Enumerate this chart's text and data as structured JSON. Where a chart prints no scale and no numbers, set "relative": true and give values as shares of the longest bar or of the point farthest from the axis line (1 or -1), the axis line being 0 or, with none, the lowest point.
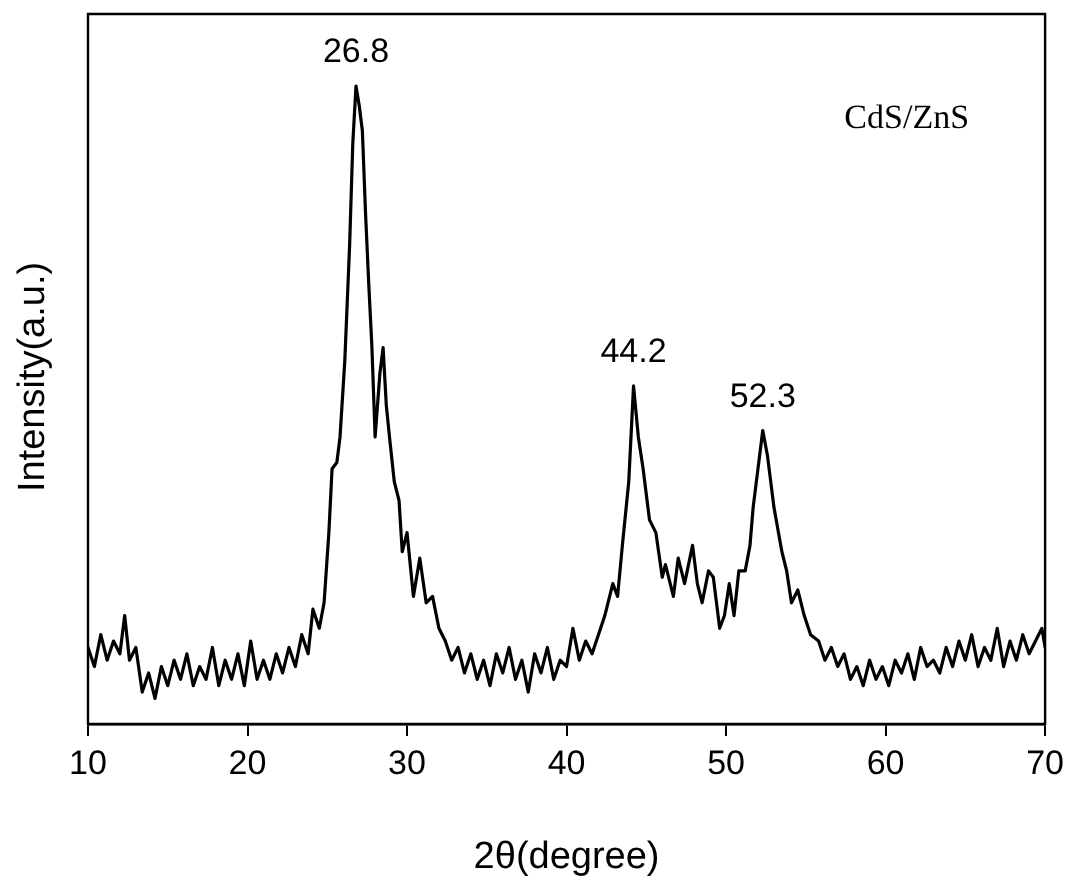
{
  "chart_data": {
    "type": "line",
    "xlabel": "2θ(degree)",
    "ylabel": "Intensity(a.u.)",
    "relative": true,
    "xlim": [
      10,
      70
    ],
    "xticks": [
      10,
      20,
      30,
      40,
      50,
      60,
      70
    ],
    "annotations": [
      {
        "text": "26.8",
        "x": 26.8,
        "y": 1.0
      },
      {
        "text": "44.2",
        "x": 44.2,
        "y": 0.53
      },
      {
        "text": "52.3",
        "x": 52.3,
        "y": 0.46
      },
      "CdS/ZnS"
    ],
    "color": "#000000",
    "x": [
      10.0,
      10.4,
      10.8,
      11.2,
      11.6,
      12.0,
      12.3,
      12.6,
      13.0,
      13.4,
      13.8,
      14.2,
      14.6,
      15.0,
      15.4,
      15.8,
      16.2,
      16.6,
      17.0,
      17.4,
      17.8,
      18.2,
      18.6,
      19.0,
      19.4,
      19.8,
      20.2,
      20.6,
      21.0,
      21.4,
      21.8,
      22.2,
      22.6,
      23.0,
      23.4,
      23.8,
      24.1,
      24.5,
      24.8,
      25.1,
      25.3,
      25.6,
      25.8,
      26.1,
      26.4,
      26.6,
      26.8,
      27.0,
      27.2,
      27.4,
      27.6,
      27.8,
      28.0,
      28.3,
      28.5,
      28.7,
      28.9,
      29.2,
      29.5,
      29.7,
      30.0,
      30.4,
      30.8,
      31.2,
      31.6,
      32.0,
      32.4,
      32.8,
      33.2,
      33.6,
      34.0,
      34.4,
      34.8,
      35.2,
      35.6,
      36.0,
      36.4,
      36.8,
      37.2,
      37.6,
      38.0,
      38.4,
      38.8,
      39.2,
      39.6,
      40.0,
      40.4,
      40.8,
      41.2,
      41.6,
      42.0,
      42.4,
      42.9,
      43.2,
      43.5,
      43.9,
      44.2,
      44.5,
      44.8,
      45.2,
      45.6,
      46.0,
      46.2,
      46.7,
      47.0,
      47.4,
      47.9,
      48.2,
      48.5,
      48.9,
      49.2,
      49.6,
      49.9,
      50.2,
      50.5,
      50.8,
      51.2,
      51.5,
      51.7,
      52.0,
      52.3,
      52.6,
      53.0,
      53.5,
      53.8,
      54.1,
      54.5,
      54.9,
      55.3,
      55.8,
      56.2,
      56.6,
      57.0,
      57.4,
      57.8,
      58.2,
      58.6,
      59.0,
      59.4,
      59.8,
      60.2,
      60.6,
      61.0,
      61.4,
      61.8,
      62.2,
      62.6,
      63.0,
      63.4,
      63.8,
      64.2,
      64.6,
      65.0,
      65.4,
      65.8,
      66.2,
      66.6,
      67.0,
      67.4,
      67.8,
      68.2,
      68.6,
      69.0,
      69.4,
      69.8,
      70.0
    ],
    "values": [
      0.12,
      0.09,
      0.14,
      0.1,
      0.13,
      0.11,
      0.17,
      0.1,
      0.12,
      0.05,
      0.08,
      0.04,
      0.09,
      0.06,
      0.1,
      0.07,
      0.11,
      0.06,
      0.09,
      0.07,
      0.12,
      0.06,
      0.1,
      0.07,
      0.11,
      0.06,
      0.13,
      0.07,
      0.1,
      0.07,
      0.11,
      0.08,
      0.12,
      0.09,
      0.14,
      0.11,
      0.18,
      0.15,
      0.19,
      0.3,
      0.4,
      0.41,
      0.45,
      0.57,
      0.75,
      0.91,
      1.0,
      0.97,
      0.93,
      0.8,
      0.69,
      0.59,
      0.45,
      0.55,
      0.59,
      0.5,
      0.45,
      0.38,
      0.35,
      0.27,
      0.3,
      0.2,
      0.26,
      0.19,
      0.2,
      0.15,
      0.13,
      0.1,
      0.12,
      0.08,
      0.11,
      0.07,
      0.1,
      0.06,
      0.11,
      0.08,
      0.12,
      0.07,
      0.1,
      0.05,
      0.11,
      0.08,
      0.12,
      0.07,
      0.1,
      0.09,
      0.15,
      0.1,
      0.13,
      0.11,
      0.14,
      0.17,
      0.22,
      0.2,
      0.28,
      0.38,
      0.53,
      0.45,
      0.4,
      0.32,
      0.3,
      0.23,
      0.25,
      0.2,
      0.26,
      0.22,
      0.28,
      0.22,
      0.19,
      0.24,
      0.23,
      0.15,
      0.17,
      0.22,
      0.17,
      0.24,
      0.24,
      0.28,
      0.34,
      0.4,
      0.46,
      0.42,
      0.34,
      0.27,
      0.24,
      0.19,
      0.21,
      0.17,
      0.14,
      0.13,
      0.1,
      0.12,
      0.09,
      0.11,
      0.07,
      0.09,
      0.06,
      0.1,
      0.07,
      0.09,
      0.06,
      0.1,
      0.08,
      0.11,
      0.07,
      0.12,
      0.09,
      0.1,
      0.08,
      0.12,
      0.09,
      0.13,
      0.1,
      0.14,
      0.09,
      0.12,
      0.1,
      0.15,
      0.09,
      0.13,
      0.1,
      0.14,
      0.11,
      0.13,
      0.15,
      0.12
    ]
  }
}
